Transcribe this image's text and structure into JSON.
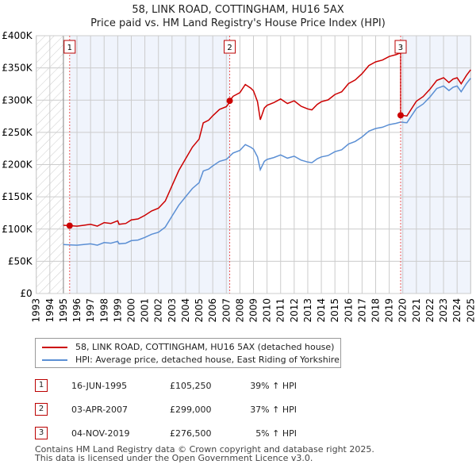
{
  "chart_data": {
    "type": "line",
    "title": "58, LINK ROAD, COTTINGHAM, HU16 5AX",
    "subtitle": "Price paid vs. HM Land Registry's House Price Index (HPI)",
    "xlim": [
      1993,
      2025
    ],
    "ylim": [
      0,
      400000
    ],
    "x_ticks": [
      "1993",
      "1994",
      "1995",
      "1996",
      "1997",
      "1998",
      "1999",
      "2000",
      "2001",
      "2002",
      "2003",
      "2004",
      "2005",
      "2006",
      "2007",
      "2008",
      "2009",
      "2010",
      "2011",
      "2012",
      "2013",
      "2014",
      "2015",
      "2016",
      "2017",
      "2018",
      "2019",
      "2020",
      "2021",
      "2022",
      "2023",
      "2024",
      "2025"
    ],
    "y_ticks": [
      {
        "v": 0,
        "label": "£0"
      },
      {
        "v": 50000,
        "label": "£50K"
      },
      {
        "v": 100000,
        "label": "£100K"
      },
      {
        "v": 150000,
        "label": "£150K"
      },
      {
        "v": 200000,
        "label": "£200K"
      },
      {
        "v": 250000,
        "label": "£250K"
      },
      {
        "v": 300000,
        "label": "£300K"
      },
      {
        "v": 350000,
        "label": "£350K"
      },
      {
        "v": 400000,
        "label": "£400K"
      }
    ],
    "grid": true,
    "hpi_series": {
      "name": "HPI: Average price, detached house, East Riding of Yorkshire",
      "color": "#5b8fd4",
      "points": [
        [
          1995,
          76
        ],
        [
          1995.5,
          75.5
        ],
        [
          1996,
          75
        ],
        [
          1996.5,
          76
        ],
        [
          1997,
          77
        ],
        [
          1997.5,
          75
        ],
        [
          1998,
          79
        ],
        [
          1998.5,
          78
        ],
        [
          1999,
          81
        ],
        [
          1999.1,
          77
        ],
        [
          1999.6,
          78
        ],
        [
          2000,
          82
        ],
        [
          2000.5,
          83
        ],
        [
          2001,
          87
        ],
        [
          2001.5,
          92
        ],
        [
          2002,
          95
        ],
        [
          2002.5,
          103
        ],
        [
          2003,
          120
        ],
        [
          2003.5,
          137
        ],
        [
          2004,
          150
        ],
        [
          2004.5,
          163
        ],
        [
          2005,
          172
        ],
        [
          2005.3,
          190
        ],
        [
          2005.7,
          193
        ],
        [
          2006,
          198
        ],
        [
          2006.5,
          205
        ],
        [
          2007,
          208
        ],
        [
          2007.5,
          218
        ],
        [
          2008,
          222
        ],
        [
          2008.4,
          231
        ],
        [
          2008.8,
          227
        ],
        [
          2009,
          224
        ],
        [
          2009.3,
          212
        ],
        [
          2009.5,
          192
        ],
        [
          2009.8,
          205
        ],
        [
          2010,
          208
        ],
        [
          2010.5,
          211
        ],
        [
          2011,
          215
        ],
        [
          2011.5,
          210
        ],
        [
          2012,
          213
        ],
        [
          2012.5,
          207
        ],
        [
          2013,
          204
        ],
        [
          2013.3,
          203
        ],
        [
          2013.7,
          209
        ],
        [
          2014,
          212
        ],
        [
          2014.5,
          214
        ],
        [
          2015,
          220
        ],
        [
          2015.5,
          223
        ],
        [
          2016,
          232
        ],
        [
          2016.5,
          236
        ],
        [
          2017,
          243
        ],
        [
          2017.5,
          252
        ],
        [
          2018,
          256
        ],
        [
          2018.5,
          258
        ],
        [
          2019,
          262
        ],
        [
          2019.5,
          264
        ],
        [
          2019.84,
          266
        ],
        [
          2020.3,
          265
        ],
        [
          2021,
          287
        ],
        [
          2021.5,
          294
        ],
        [
          2022,
          305
        ],
        [
          2022.5,
          318
        ],
        [
          2023,
          322
        ],
        [
          2023.4,
          315
        ],
        [
          2023.7,
          320
        ],
        [
          2024,
          322
        ],
        [
          2024.3,
          313
        ],
        [
          2024.7,
          326
        ],
        [
          2025,
          334
        ]
      ]
    },
    "price_series": {
      "name": "58, LINK ROAD, COTTINGHAM, HU16 5AX (detached house)",
      "color": "#cc0000"
    },
    "sales": [
      {
        "id": "1",
        "x": 1995.46,
        "value": 105250,
        "date": "16-JUN-1995",
        "price": "£105,250",
        "delta": "39% ↑ HPI"
      },
      {
        "id": "2",
        "x": 2007.25,
        "value": 299000,
        "date": "03-APR-2007",
        "price": "£299,000",
        "delta": "37% ↑ HPI"
      },
      {
        "id": "3",
        "x": 2019.84,
        "value": 276500,
        "date": "04-NOV-2019",
        "price": "£276,500",
        "delta": "5% ↑ HPI"
      }
    ]
  },
  "footer": [
    "Contains HM Land Registry data © Crown copyright and database right 2025.",
    "This data is licensed under the Open Government Licence v3.0."
  ]
}
